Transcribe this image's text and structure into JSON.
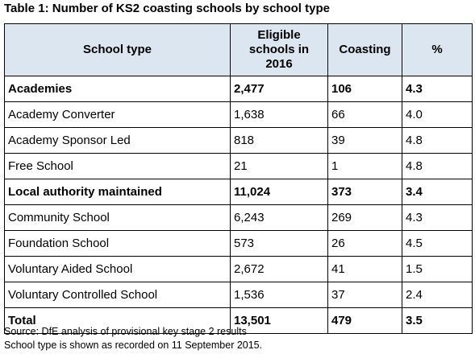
{
  "caption": "Table 1: Number of KS2 coasting schools by school type",
  "headers": {
    "school_type": "School type",
    "eligible_line1": "Eligible",
    "eligible_line2": "schools in",
    "eligible_line3": "2016",
    "coasting": "Coasting",
    "percent": "%"
  },
  "rows": [
    {
      "label": "Academies",
      "eligible": "2,477",
      "coasting": "106",
      "percent": "4.3"
    },
    {
      "label": "Academy Converter",
      "eligible": "1,638",
      "coasting": "66",
      "percent": "4.0"
    },
    {
      "label": "Academy Sponsor Led",
      "eligible": "818",
      "coasting": "39",
      "percent": "4.8"
    },
    {
      "label": "Free School",
      "eligible": "21",
      "coasting": "1",
      "percent": "4.8"
    },
    {
      "label": "Local authority maintained",
      "eligible": "11,024",
      "coasting": "373",
      "percent": "3.4"
    },
    {
      "label": "Community School",
      "eligible": "6,243",
      "coasting": "269",
      "percent": "4.3"
    },
    {
      "label": "Foundation School",
      "eligible": "573",
      "coasting": "26",
      "percent": "4.5"
    },
    {
      "label": "Voluntary Aided School",
      "eligible": "2,672",
      "coasting": "41",
      "percent": "1.5"
    },
    {
      "label": "Voluntary Controlled School",
      "eligible": "1,536",
      "coasting": "37",
      "percent": "2.4"
    },
    {
      "label": "Total",
      "eligible": "13,501",
      "coasting": "479",
      "percent": "3.5"
    }
  ],
  "notes": {
    "source": "Source: DfE analysis of provisional key stage 2 results",
    "school_type_note": "School type is shown as recorded on 11 September 2015."
  },
  "colors": {
    "header_background": "#dce6f1",
    "border": "#000000"
  }
}
